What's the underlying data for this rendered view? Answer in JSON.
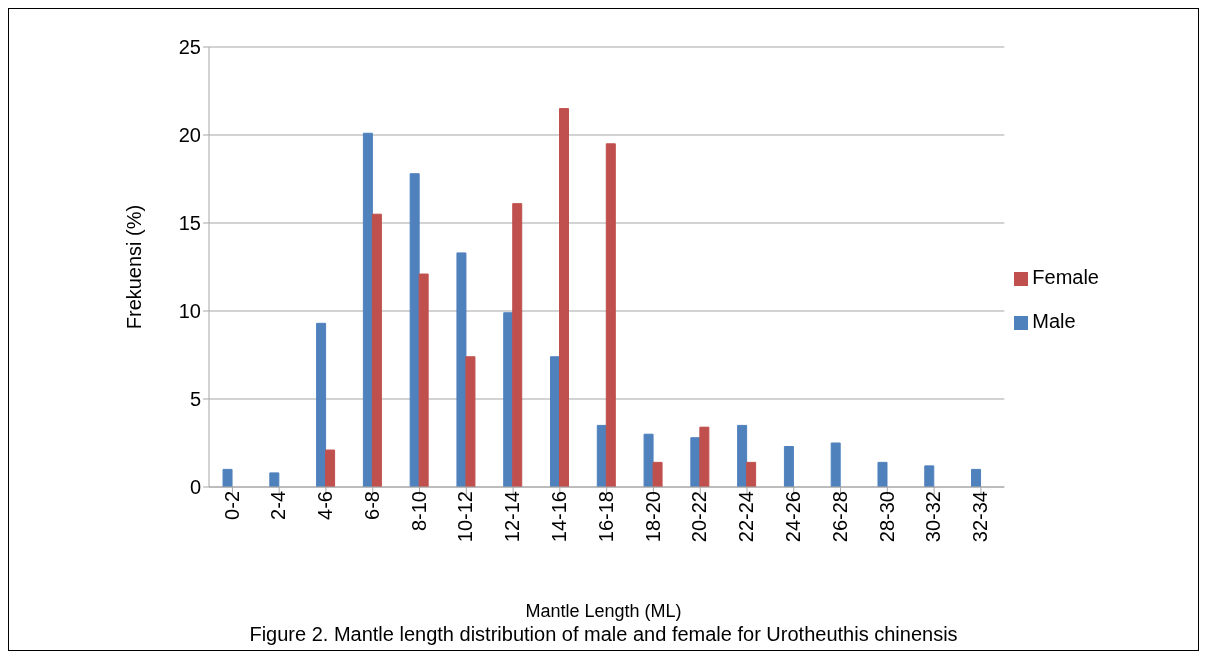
{
  "chart_data": {
    "type": "bar",
    "xlabel": "Mantle Length (ML)",
    "ylabel": "Frekuensi (%)",
    "categories": [
      "0-2",
      "2-4",
      "4-6",
      "6-8",
      "8-10",
      "10-12",
      "12-14",
      "14-16",
      "16-18",
      "18-20",
      "20-22",
      "22-24",
      "24-26",
      "26-28",
      "28-30",
      "30-32",
      "32-34"
    ],
    "series": [
      {
        "name": "Male",
        "color": "#4f81bd",
        "values": [
          1.0,
          0.8,
          9.3,
          20.1,
          17.8,
          13.3,
          9.9,
          7.4,
          3.5,
          3.0,
          2.8,
          3.5,
          2.3,
          2.5,
          1.4,
          1.2,
          1.0
        ]
      },
      {
        "name": "Female",
        "color": "#c0504d",
        "values": [
          null,
          null,
          2.1,
          15.5,
          12.1,
          7.4,
          16.1,
          21.5,
          19.5,
          1.4,
          3.4,
          1.4,
          null,
          null,
          null,
          null,
          null
        ]
      }
    ],
    "ylim": [
      0,
      25
    ],
    "yticks": [
      0,
      5,
      10,
      15,
      20,
      25
    ],
    "grid": "y",
    "legend": "right",
    "annotations": [
      "Figure 2. Mantle length distribution of male and female for Urotheuthis chinensis"
    ]
  }
}
